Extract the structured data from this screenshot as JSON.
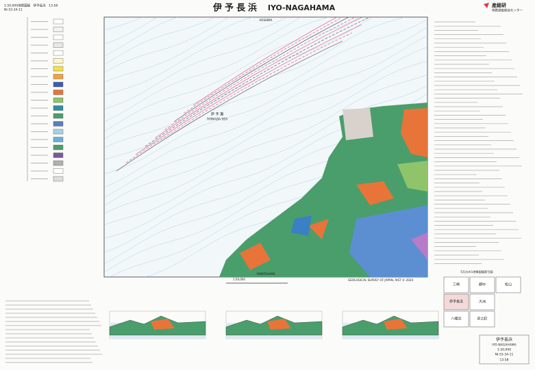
{
  "header": {
    "series_label": "1:50,000地質図幅　伊予長浜　13-58",
    "sheet_code": "NI-53-34-11",
    "title_ja": "伊予長浜",
    "title_en": "IYO-NAGAHAMA",
    "publisher_mark": "産総研",
    "publisher": "地質調査総合センター"
  },
  "map": {
    "sea_ja": "伊 予 灘",
    "sea_en": "IYONADA SEA",
    "top_label": "AOSHIMA",
    "bottom_label": "YAWATAHAMA",
    "scale": "1:50,000",
    "credit": "GEOLOGICAL SURVEY OF JAPAN, AIST © 2024"
  },
  "index": {
    "title": "5万分の1地質図幅索引図",
    "cells": [
      "三崎",
      "郡中",
      "松山",
      "伊予長浜",
      "大洲",
      "八幡浜",
      "卯之町"
    ]
  },
  "footer": {
    "title_ja": "伊予長浜",
    "title_en": "IYO-NAGAHAMA",
    "scale": "1:50,000",
    "sheet_code": "NI-53-34-11",
    "number": "13-58"
  }
}
